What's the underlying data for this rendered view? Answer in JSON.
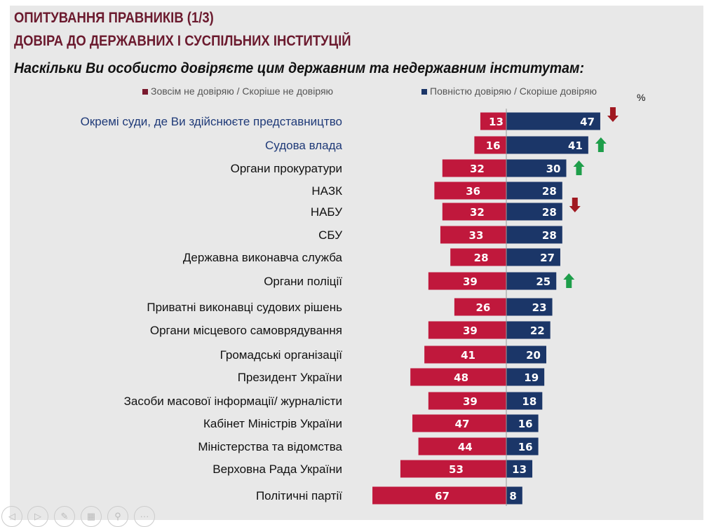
{
  "header": {
    "title_line1": "ОПИТУВАННЯ ПРАВНИКІВ (1/3)",
    "title_line2": "ДОВІРА ДО ДЕРЖАВНИХ І СУСПІЛЬНИХ ІНСТИТУЦІЙ",
    "question": "Наскільки Ви особисто довіряєте цим державним та недержавним інститутам:"
  },
  "chart_data": {
    "type": "bar",
    "orientation": "horizontal-diverging",
    "unit": "%",
    "categories": [
      "Окремі суди, де Ви здійснюєте представництво",
      "Судова влада",
      "Органи прокуратури",
      "НАЗК",
      "НАБУ",
      "СБУ",
      "Державна виконавча служба",
      "Органи поліції",
      "Приватні виконавці судових рішень",
      "Органи місцевого самоврядування",
      "Громадські організації",
      "Президент України",
      "Засоби масової інформації/ журналісти",
      "Кабінет Міністрів України",
      "Міністерства та відомства",
      "Верховна Рада України",
      "Політичні партії"
    ],
    "series": [
      {
        "name": "Зовсім не довіряю / Скоріше не довіряю",
        "color": "#c0183c",
        "values": [
          13,
          16,
          32,
          36,
          32,
          33,
          28,
          39,
          26,
          39,
          41,
          48,
          39,
          47,
          44,
          53,
          67
        ]
      },
      {
        "name": "Повністю довіряю / Скоріше довіряю",
        "color": "#1b3668",
        "values": [
          47,
          41,
          30,
          28,
          28,
          28,
          27,
          25,
          23,
          22,
          20,
          19,
          18,
          16,
          16,
          13,
          8
        ]
      }
    ],
    "trend_arrows": [
      "down",
      "up",
      "up",
      null,
      "down",
      null,
      null,
      "up",
      null,
      null,
      null,
      null,
      null,
      null,
      null,
      null,
      null
    ],
    "highlighted_categories": [
      0,
      1
    ],
    "legend_placement": "top",
    "grid": false
  },
  "colors": {
    "label_highlight": "#1f3a78",
    "arrow_up": "#1e9e4a",
    "arrow_down": "#a01820",
    "title": "#6b1a2e"
  },
  "nav_icons": [
    "prev-icon",
    "next-icon",
    "pen-icon",
    "slides-icon",
    "zoom-icon",
    "more-icon"
  ]
}
